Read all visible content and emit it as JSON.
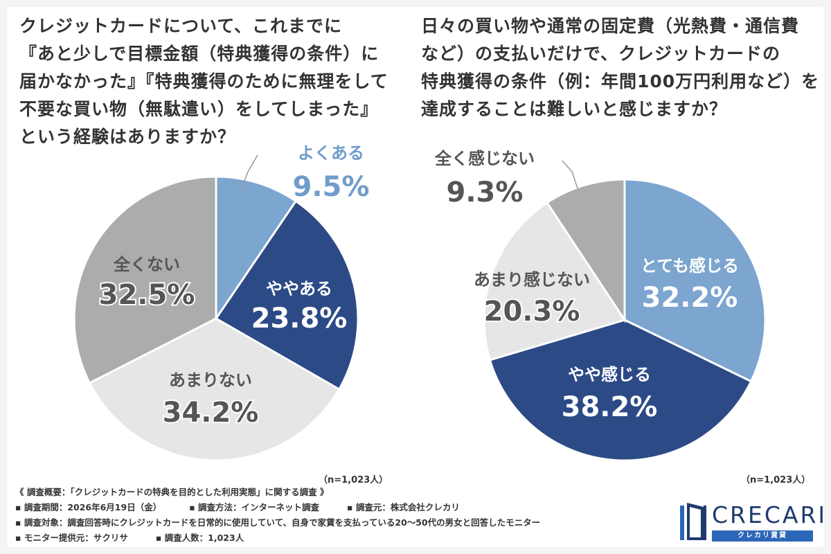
{
  "left_question": {
    "lines": [
      "クレジットカードについて、これまでに",
      "『あと少しで目標金額（特典獲得の条件）に",
      "届かなかった』『特典獲得のために無理をして",
      "不要な買い物（無駄遣い）をしてしまった』",
      "という経験はありますか？"
    ],
    "n_note": "（n=1,023人）"
  },
  "right_question": {
    "lines": [
      "日々の買い物や通常の固定費（光熱費・通信費",
      "など）の支払いだけで、クレジットカードの",
      "特典獲得の条件（例：年間100万円利用など）を",
      "達成することは難しいと感じますか？"
    ],
    "n_note": "（n=1,023人）"
  },
  "chart_data": [
    {
      "type": "pie",
      "title": "",
      "start": "12 o'clock, clockwise",
      "slices": [
        {
          "label": "よくある",
          "value": 9.5,
          "pct": "9.5%",
          "color": "#7ca5cf",
          "text_color": "#6f9ccb",
          "label_outside": true
        },
        {
          "label": "ややある",
          "value": 23.8,
          "pct": "23.8%",
          "color": "#2c4a86",
          "text_color": "#ffffff",
          "label_outside": false
        },
        {
          "label": "あまりない",
          "value": 34.2,
          "pct": "34.2%",
          "color": "#e6e6e6",
          "text_color": "#555555",
          "label_outside": false
        },
        {
          "label": "全くない",
          "value": 32.5,
          "pct": "32.5%",
          "color": "#acacac",
          "text_color": "#555555",
          "label_outside": false
        }
      ]
    },
    {
      "type": "pie",
      "title": "",
      "start": "12 o'clock, clockwise",
      "slices": [
        {
          "label": "とても感じる",
          "value": 32.2,
          "pct": "32.2%",
          "color": "#7ca5cf",
          "text_color": "#ffffff",
          "label_outside": false
        },
        {
          "label": "やや感じる",
          "value": 38.2,
          "pct": "38.2%",
          "color": "#2c4a86",
          "text_color": "#ffffff",
          "label_outside": false
        },
        {
          "label": "あまり感じない",
          "value": 20.3,
          "pct": "20.3%",
          "color": "#e6e6e6",
          "text_color": "#555555",
          "label_outside": false
        },
        {
          "label": "全く感じない",
          "value": 9.3,
          "pct": "9.3%",
          "color": "#acacac",
          "text_color": "#555555",
          "label_outside": true
        }
      ]
    }
  ],
  "footer": {
    "summary": "《 調査概要：「クレジットカードの特典を目的とした利用実態」に関する調査 》",
    "period": "▪ 調査期間：2026年6月19日（金）",
    "method": "▪ 調査方法：インターネット調査",
    "source": "▪ 調査元：株式会社クレカリ",
    "target": "▪ 調査対象：調査回答時にクレジットカードを日常的に使用していて、自身で家賃を支払っている20〜50代の男女と回答したモニター",
    "provider": "▪ モニター提供元：サクリサ",
    "count": "▪ 調査人数：1,023人"
  },
  "logo": {
    "name": "CRECARI",
    "sub": "クレカリ賃貸"
  }
}
